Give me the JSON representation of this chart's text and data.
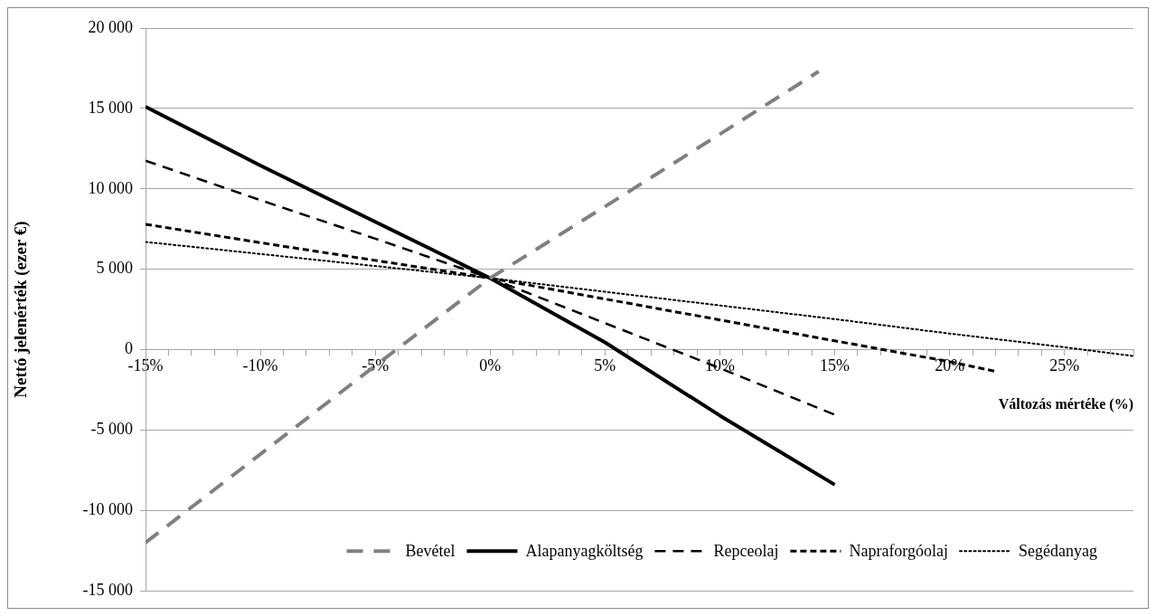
{
  "chart_data": {
    "type": "line",
    "xlabel": "Változás mértéke (%)",
    "ylabel": "Nettó jelenérték (ezer €)",
    "xlim": [
      -15,
      28
    ],
    "xticks": [
      {
        "value": -15,
        "label": "-15%"
      },
      {
        "value": -14,
        "label": null
      },
      {
        "value": -13,
        "label": null
      },
      {
        "value": -12,
        "label": null
      },
      {
        "value": -11,
        "label": null
      },
      {
        "value": -10,
        "label": "-10%"
      },
      {
        "value": -9,
        "label": null
      },
      {
        "value": -8,
        "label": null
      },
      {
        "value": -7,
        "label": null
      },
      {
        "value": -6,
        "label": null
      },
      {
        "value": -5,
        "label": "-5%"
      },
      {
        "value": -4,
        "label": null
      },
      {
        "value": -3,
        "label": null
      },
      {
        "value": -2,
        "label": null
      },
      {
        "value": -1,
        "label": null
      },
      {
        "value": 0,
        "label": "0%"
      },
      {
        "value": 1,
        "label": null
      },
      {
        "value": 2,
        "label": null
      },
      {
        "value": 3,
        "label": null
      },
      {
        "value": 4,
        "label": null
      },
      {
        "value": 5,
        "label": "5%"
      },
      {
        "value": 6,
        "label": null
      },
      {
        "value": 7,
        "label": null
      },
      {
        "value": 8,
        "label": null
      },
      {
        "value": 9,
        "label": null
      },
      {
        "value": 10,
        "label": "10%"
      },
      {
        "value": 11,
        "label": null
      },
      {
        "value": 12,
        "label": null
      },
      {
        "value": 13,
        "label": null
      },
      {
        "value": 14,
        "label": null
      },
      {
        "value": 15,
        "label": "15%"
      },
      {
        "value": 16,
        "label": null
      },
      {
        "value": 17,
        "label": null
      },
      {
        "value": 18,
        "label": null
      },
      {
        "value": 19,
        "label": null
      },
      {
        "value": 20,
        "label": "20%"
      },
      {
        "value": 21,
        "label": null
      },
      {
        "value": 22,
        "label": null
      },
      {
        "value": 23,
        "label": null
      },
      {
        "value": 24,
        "label": null
      },
      {
        "value": 25,
        "label": "25%"
      },
      {
        "value": 26,
        "label": null
      },
      {
        "value": 27,
        "label": null
      },
      {
        "value": 28,
        "label": null
      }
    ],
    "ylim": [
      -15000,
      20000
    ],
    "yticks": [
      {
        "value": -15000,
        "label": "-15 000"
      },
      {
        "value": -10000,
        "label": "-10 000"
      },
      {
        "value": -5000,
        "label": "-5 000"
      },
      {
        "value": 0,
        "label": "0"
      },
      {
        "value": 5000,
        "label": "5 000"
      },
      {
        "value": 10000,
        "label": "10 000"
      },
      {
        "value": 15000,
        "label": "15 000"
      },
      {
        "value": 20000,
        "label": "20 000"
      }
    ],
    "grid": "y",
    "legend": "bottom right",
    "series": [
      {
        "name": "Bevétel",
        "color": "#808080",
        "line_style": "dashed",
        "x": [
          -15,
          -10,
          -5,
          0,
          5,
          10,
          14.3
        ],
        "values": [
          -12000,
          -6500,
          -1000,
          4450,
          8900,
          13400,
          17300
        ]
      },
      {
        "name": "Alapanyagköltség",
        "color": "#000000",
        "line_style": "solid",
        "x": [
          -15,
          -10,
          -5,
          0,
          5,
          10,
          15
        ],
        "values": [
          15100,
          11450,
          7950,
          4450,
          450,
          -4100,
          -8400
        ]
      },
      {
        "name": "Repceolaj",
        "color": "#000000",
        "line_style": "dashed",
        "x": [
          -15,
          -10,
          -5,
          0,
          5,
          10,
          15
        ],
        "values": [
          11750,
          9300,
          6900,
          4450,
          1650,
          -1150,
          -4050
        ]
      },
      {
        "name": "Napraforgóolaj",
        "color": "#000000",
        "line_style": "dashed",
        "x": [
          -15,
          -10,
          -5,
          0,
          5,
          10,
          15,
          20,
          22
        ],
        "values": [
          7800,
          6650,
          5550,
          4450,
          3150,
          1850,
          550,
          -750,
          -1350
        ]
      },
      {
        "name": "Segédanyag",
        "color": "#000000",
        "line_style": "dotted",
        "x": [
          -15,
          -10,
          -5,
          0,
          5,
          10,
          15,
          20,
          25,
          28
        ],
        "values": [
          6700,
          5950,
          5200,
          4450,
          3600,
          2750,
          1900,
          1000,
          150,
          -400
        ]
      }
    ]
  }
}
